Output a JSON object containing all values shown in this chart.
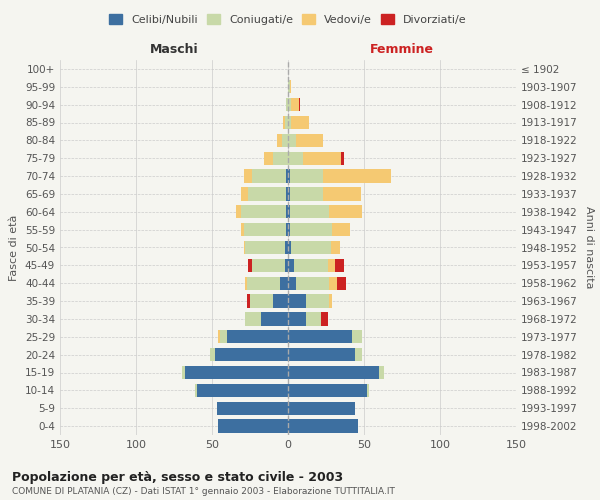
{
  "age_groups": [
    "0-4",
    "5-9",
    "10-14",
    "15-19",
    "20-24",
    "25-29",
    "30-34",
    "35-39",
    "40-44",
    "45-49",
    "50-54",
    "55-59",
    "60-64",
    "65-69",
    "70-74",
    "75-79",
    "80-84",
    "85-89",
    "90-94",
    "95-99",
    "100+"
  ],
  "birth_years": [
    "1998-2002",
    "1993-1997",
    "1988-1992",
    "1983-1987",
    "1978-1982",
    "1973-1977",
    "1968-1972",
    "1963-1967",
    "1958-1962",
    "1953-1957",
    "1948-1952",
    "1943-1947",
    "1938-1942",
    "1933-1937",
    "1928-1932",
    "1923-1927",
    "1918-1922",
    "1913-1917",
    "1908-1912",
    "1903-1907",
    "≤ 1902"
  ],
  "males": {
    "celibi": [
      46,
      47,
      60,
      68,
      48,
      40,
      18,
      10,
      5,
      2,
      2,
      1,
      1,
      1,
      1,
      0,
      0,
      0,
      0,
      0,
      0
    ],
    "coniugati": [
      0,
      0,
      1,
      2,
      3,
      5,
      10,
      15,
      22,
      22,
      26,
      28,
      30,
      25,
      23,
      10,
      4,
      2,
      1,
      0,
      0
    ],
    "vedovi": [
      0,
      0,
      0,
      0,
      0,
      1,
      0,
      0,
      1,
      0,
      1,
      2,
      3,
      5,
      5,
      6,
      3,
      1,
      0,
      0,
      0
    ],
    "divorziati": [
      0,
      0,
      0,
      0,
      0,
      0,
      0,
      2,
      0,
      2,
      0,
      0,
      0,
      0,
      0,
      0,
      0,
      0,
      0,
      0,
      0
    ]
  },
  "females": {
    "nubili": [
      46,
      44,
      52,
      60,
      44,
      42,
      12,
      12,
      5,
      4,
      2,
      1,
      1,
      1,
      1,
      0,
      0,
      0,
      0,
      0,
      0
    ],
    "coniugate": [
      0,
      0,
      1,
      3,
      5,
      7,
      10,
      15,
      22,
      22,
      26,
      28,
      26,
      22,
      22,
      10,
      5,
      2,
      2,
      1,
      0
    ],
    "vedove": [
      0,
      0,
      0,
      0,
      0,
      0,
      0,
      2,
      5,
      5,
      6,
      12,
      22,
      25,
      45,
      25,
      18,
      12,
      5,
      1,
      0
    ],
    "divorziate": [
      0,
      0,
      0,
      0,
      0,
      0,
      4,
      0,
      6,
      6,
      0,
      0,
      0,
      0,
      0,
      2,
      0,
      0,
      1,
      0,
      0
    ]
  },
  "colors": {
    "celibi_nubili": "#3d6fa0",
    "coniugati": "#c8d9a8",
    "vedovi": "#f5c972",
    "divorziati": "#cc2222"
  },
  "title": "Popolazione per età, sesso e stato civile - 2003",
  "subtitle": "COMUNE DI PLATANIA (CZ) - Dati ISTAT 1° gennaio 2003 - Elaborazione TUTTITALIA.IT",
  "xlabel_left": "Maschi",
  "xlabel_right": "Femmine",
  "ylabel_left": "Fasce di età",
  "ylabel_right": "Anni di nascita",
  "xlim": 150,
  "background_color": "#f5f5f0",
  "grid_color": "#cccccc"
}
